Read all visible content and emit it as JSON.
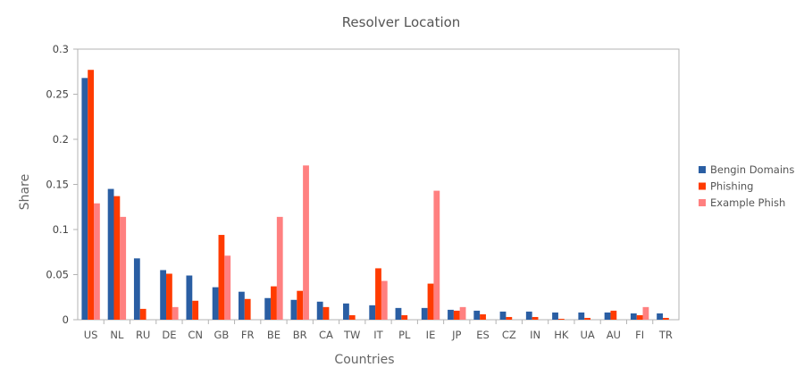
{
  "chart_data": {
    "type": "bar",
    "title": "Resolver Location",
    "xlabel": "Countries",
    "ylabel": "Share",
    "ylim": [
      0,
      0.3
    ],
    "yticks": [
      "0",
      "0.05",
      "0.1",
      "0.15",
      "0.2",
      "0.25",
      "0.3"
    ],
    "ytick_values": [
      0,
      0.05,
      0.1,
      0.15,
      0.2,
      0.25,
      0.3
    ],
    "grid": false,
    "legend_position": "right",
    "categories": [
      "US",
      "NL",
      "RU",
      "DE",
      "CN",
      "GB",
      "FR",
      "BE",
      "BR",
      "CA",
      "TW",
      "IT",
      "PL",
      "IE",
      "JP",
      "ES",
      "CZ",
      "IN",
      "HK",
      "UA",
      "AU",
      "FI",
      "TR"
    ],
    "series": [
      {
        "name": "Bengin Domains",
        "color": "#2a5ea3",
        "values": [
          0.268,
          0.145,
          0.068,
          0.055,
          0.049,
          0.036,
          0.031,
          0.024,
          0.022,
          0.02,
          0.018,
          0.016,
          0.013,
          0.013,
          0.011,
          0.01,
          0.009,
          0.009,
          0.008,
          0.008,
          0.008,
          0.007,
          0.007
        ]
      },
      {
        "name": "Phishing",
        "color": "#ff3b00",
        "values": [
          0.277,
          0.137,
          0.012,
          0.051,
          0.021,
          0.094,
          0.023,
          0.037,
          0.032,
          0.014,
          0.005,
          0.057,
          0.005,
          0.04,
          0.01,
          0.006,
          0.003,
          0.003,
          0.001,
          0.002,
          0.01,
          0.005,
          0.002
        ]
      },
      {
        "name": "Example Phish",
        "color": "#ff8080",
        "values": [
          0.129,
          0.114,
          0,
          0.014,
          0,
          0.071,
          0,
          0.114,
          0.171,
          0,
          0,
          0.043,
          0,
          0.143,
          0.014,
          0,
          0,
          0,
          0,
          0,
          0,
          0.014,
          0
        ]
      }
    ]
  }
}
